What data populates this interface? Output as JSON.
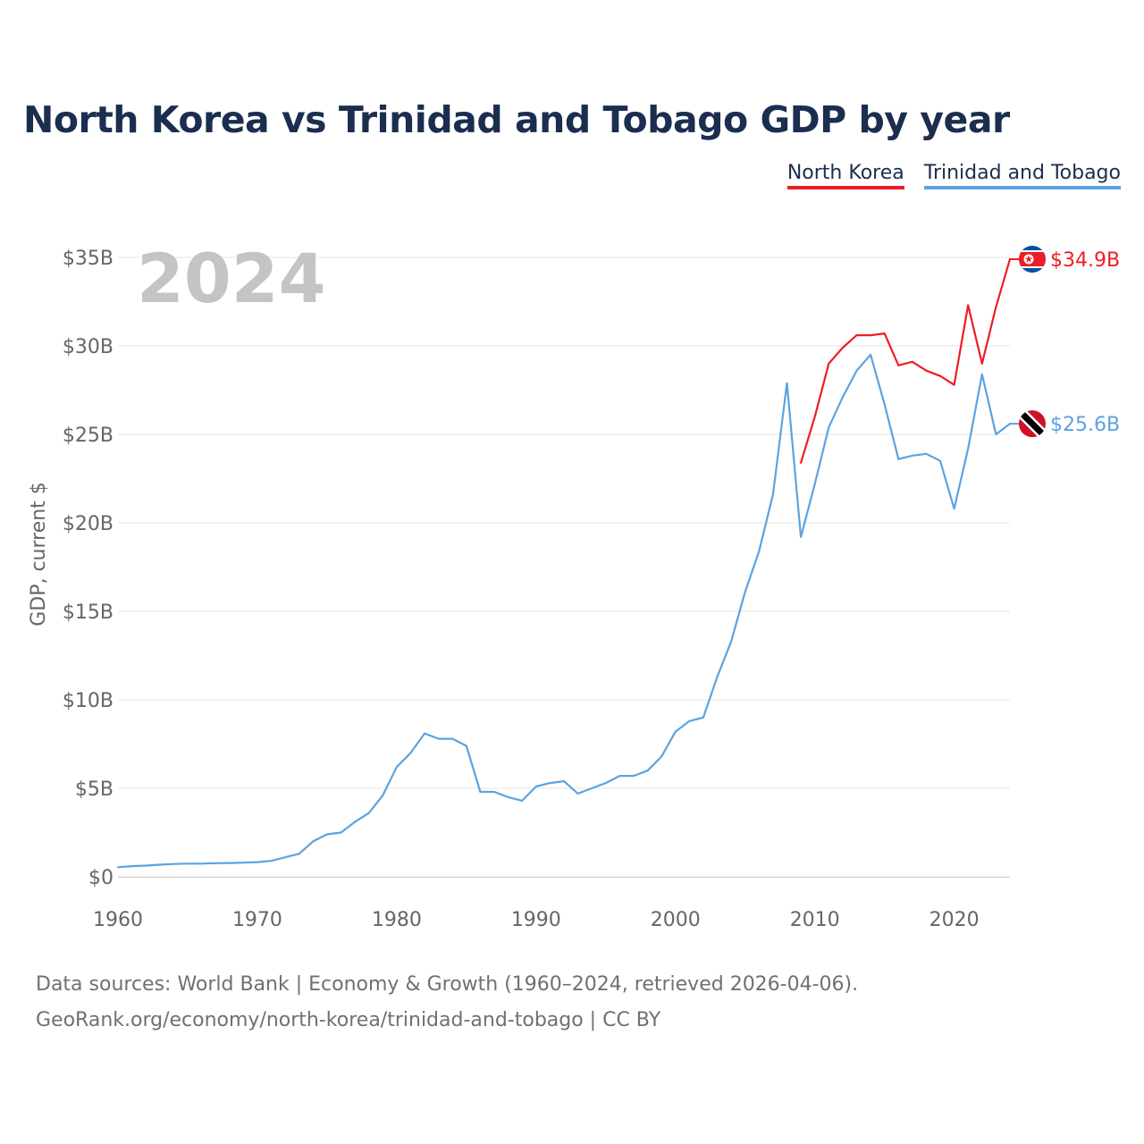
{
  "title": "North Korea vs Trinidad and Tobago GDP by year",
  "legend": [
    {
      "name": "North Korea",
      "color": "#ee1c25"
    },
    {
      "name": "Trinidad and Tobago",
      "color": "#5ba3e0"
    }
  ],
  "year_label": "2024",
  "footer": {
    "line1": "Data sources: World Bank | Economy & Growth (1960–2024, retrieved 2026-04-06).",
    "line2": "GeoRank.org/economy/north-korea/trinidad-and-tobago | CC BY"
  },
  "chart_data": {
    "type": "line",
    "title": "North Korea vs Trinidad and Tobago GDP by year",
    "xlabel": "",
    "ylabel": "GDP, current $",
    "xlim": [
      1960,
      2024
    ],
    "ylim": [
      0,
      35
    ],
    "unit": "billion USD",
    "grid": true,
    "legend_position": "top-right",
    "x_ticks": [
      "1960",
      "1970",
      "1980",
      "1990",
      "2000",
      "2010",
      "2020"
    ],
    "y_ticks": [
      "$0",
      "$5B",
      "$10B",
      "$15B",
      "$20B",
      "$25B",
      "$30B",
      "$35B"
    ],
    "series": [
      {
        "name": "North Korea",
        "color": "#ee1c25",
        "end_label": "$34.9B",
        "flag": "north-korea",
        "x": [
          2009,
          2010,
          2011,
          2012,
          2013,
          2014,
          2015,
          2016,
          2017,
          2018,
          2019,
          2020,
          2021,
          2022,
          2023,
          2024
        ],
        "values": [
          23.4,
          26.0,
          29.0,
          29.9,
          30.6,
          30.6,
          30.7,
          28.9,
          29.1,
          28.6,
          28.3,
          27.8,
          32.3,
          29.0,
          32.2,
          34.9
        ]
      },
      {
        "name": "Trinidad and Tobago",
        "color": "#5ba3e0",
        "end_label": "$25.6B",
        "flag": "trinidad-and-tobago",
        "x": [
          1960,
          1961,
          1962,
          1963,
          1964,
          1965,
          1966,
          1967,
          1968,
          1969,
          1970,
          1971,
          1972,
          1973,
          1974,
          1975,
          1976,
          1977,
          1978,
          1979,
          1980,
          1981,
          1982,
          1983,
          1984,
          1985,
          1986,
          1987,
          1988,
          1989,
          1990,
          1991,
          1992,
          1993,
          1994,
          1995,
          1996,
          1997,
          1998,
          1999,
          2000,
          2001,
          2002,
          2003,
          2004,
          2005,
          2006,
          2007,
          2008,
          2009,
          2010,
          2011,
          2012,
          2013,
          2014,
          2015,
          2016,
          2017,
          2018,
          2019,
          2020,
          2021,
          2022,
          2023,
          2024
        ],
        "values": [
          0.54,
          0.6,
          0.63,
          0.68,
          0.72,
          0.74,
          0.74,
          0.77,
          0.78,
          0.8,
          0.83,
          0.9,
          1.1,
          1.3,
          2.0,
          2.4,
          2.5,
          3.1,
          3.6,
          4.6,
          6.2,
          7.0,
          8.1,
          7.8,
          7.8,
          7.4,
          4.8,
          4.8,
          4.5,
          4.3,
          5.1,
          5.3,
          5.4,
          4.7,
          5.0,
          5.3,
          5.7,
          5.7,
          6.0,
          6.8,
          8.2,
          8.8,
          9.0,
          11.3,
          13.3,
          16.1,
          18.4,
          21.6,
          27.9,
          19.2,
          22.2,
          25.4,
          27.1,
          28.6,
          29.5,
          26.7,
          23.6,
          23.8,
          23.9,
          23.5,
          20.8,
          24.2,
          28.4,
          25.0,
          25.6
        ]
      }
    ]
  }
}
